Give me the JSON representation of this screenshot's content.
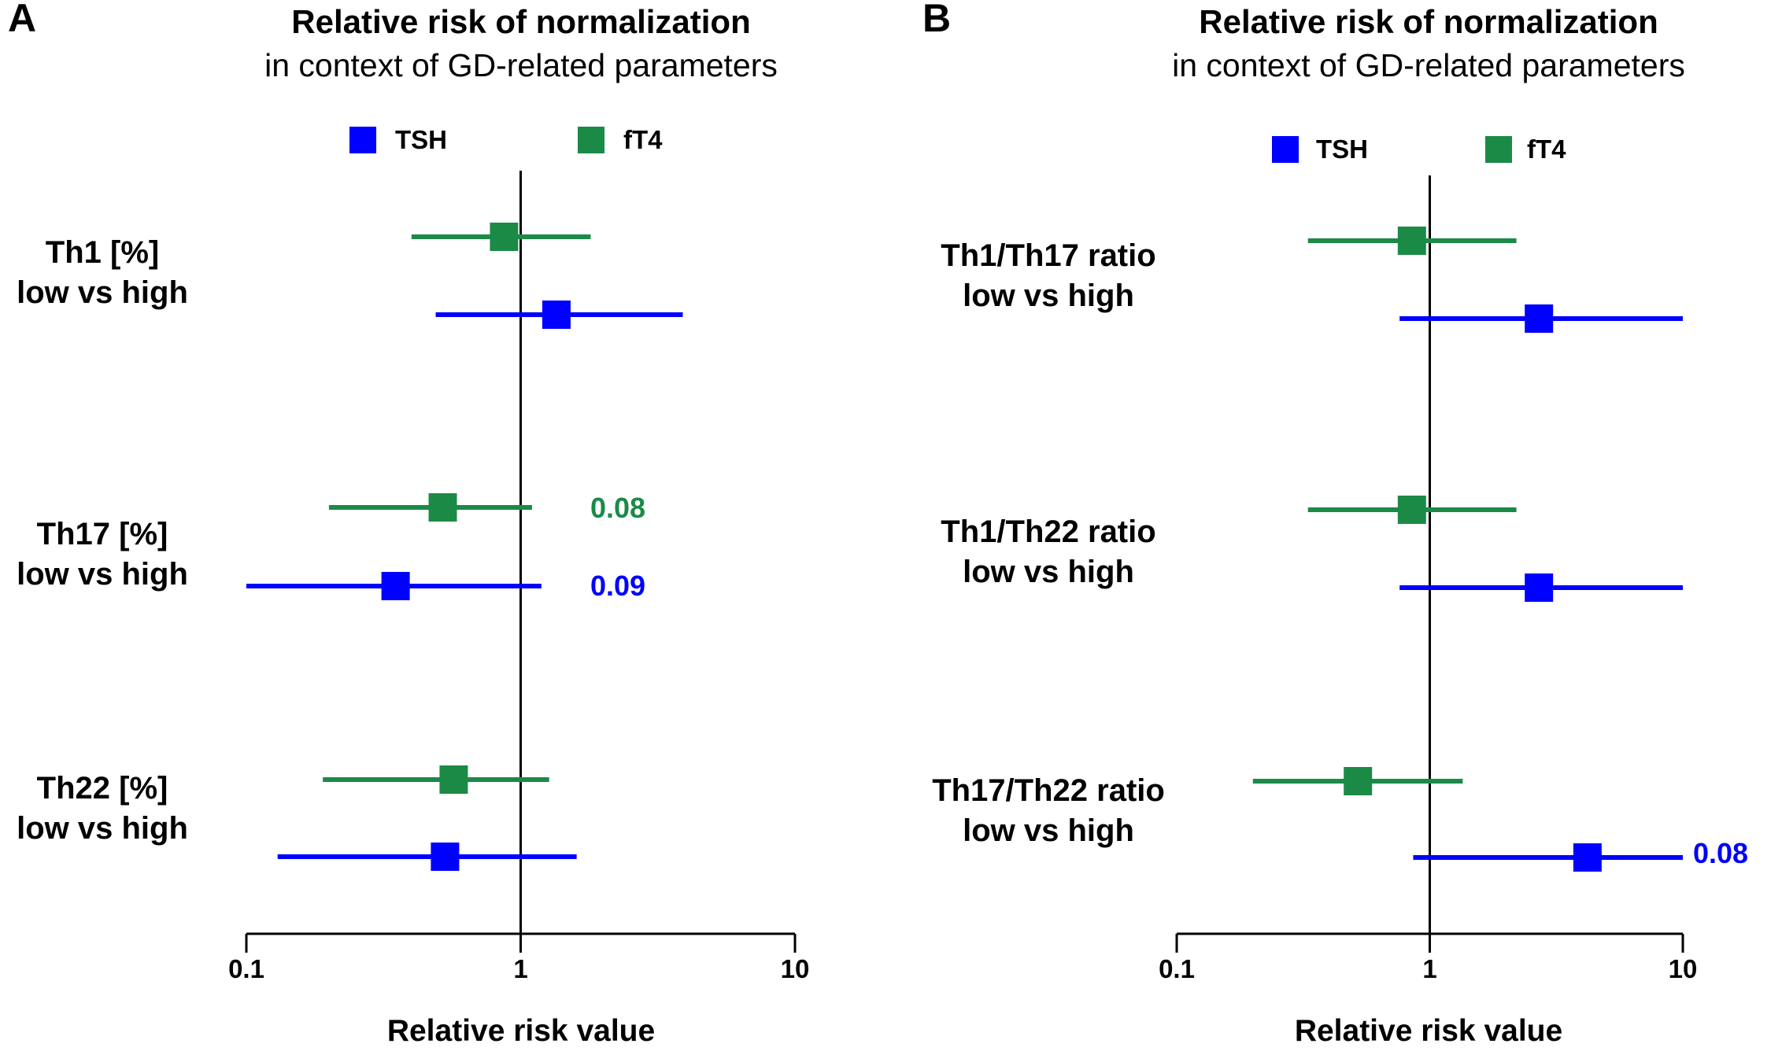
{
  "chart_data": [
    {
      "type": "forest",
      "panel": "A",
      "title": "Relative risk of normalization",
      "subtitle": "in context of GD-related parameters",
      "xlabel": "Relative risk value",
      "xscale": "log",
      "xlim": [
        0.1,
        10
      ],
      "xticks": [
        0.1,
        1,
        10
      ],
      "xtick_labels": [
        "0.1",
        "1",
        "10"
      ],
      "reference_line": 1,
      "legend": [
        {
          "name": "TSH",
          "color": "#0000ff"
        },
        {
          "name": "fT4",
          "color": "#1b8a47"
        }
      ],
      "rows": [
        {
          "label_line1": "Th1 [%]",
          "label_line2": "low vs high",
          "fT4": {
            "estimate": 0.87,
            "lower": 0.4,
            "upper": 1.8
          },
          "TSH": {
            "estimate": 1.35,
            "lower": 0.49,
            "upper": 3.9
          }
        },
        {
          "label_line1": "Th17 [%]",
          "label_line2": "low vs high",
          "fT4": {
            "estimate": 0.52,
            "lower": 0.2,
            "upper": 1.1,
            "p": "0.08"
          },
          "TSH": {
            "estimate": 0.35,
            "lower": 0.1,
            "upper": 1.19,
            "p": "0.09"
          }
        },
        {
          "label_line1": "Th22 [%]",
          "label_line2": "low vs high",
          "fT4": {
            "estimate": 0.57,
            "lower": 0.19,
            "upper": 1.27
          },
          "TSH": {
            "estimate": 0.53,
            "lower": 0.13,
            "upper": 1.6
          }
        }
      ]
    },
    {
      "type": "forest",
      "panel": "B",
      "title": "Relative risk of normalization",
      "subtitle": "in context of GD-related parameters",
      "xlabel": "Relative risk value",
      "xscale": "log",
      "xlim": [
        0.1,
        10
      ],
      "xticks": [
        0.1,
        1,
        10
      ],
      "xtick_labels": [
        "0.1",
        "1",
        "10"
      ],
      "reference_line": 1,
      "legend": [
        {
          "name": "TSH",
          "color": "#0000ff"
        },
        {
          "name": "fT4",
          "color": "#1b8a47"
        }
      ],
      "rows": [
        {
          "label_line1": "Th1/Th17 ratio",
          "label_line2": "low vs high",
          "fT4": {
            "estimate": 0.85,
            "lower": 0.33,
            "upper": 2.2
          },
          "TSH": {
            "estimate": 2.7,
            "lower": 0.76,
            "upper": 10
          }
        },
        {
          "label_line1": "Th1/Th22 ratio",
          "label_line2": "low vs high",
          "fT4": {
            "estimate": 0.85,
            "lower": 0.33,
            "upper": 2.2
          },
          "TSH": {
            "estimate": 2.7,
            "lower": 0.76,
            "upper": 10
          }
        },
        {
          "label_line1": "Th17/Th22 ratio",
          "label_line2": "low vs high",
          "fT4": {
            "estimate": 0.52,
            "lower": 0.2,
            "upper": 1.35
          },
          "TSH": {
            "estimate": 4.2,
            "lower": 0.86,
            "upper": 10,
            "p": "0.08"
          }
        }
      ]
    }
  ]
}
